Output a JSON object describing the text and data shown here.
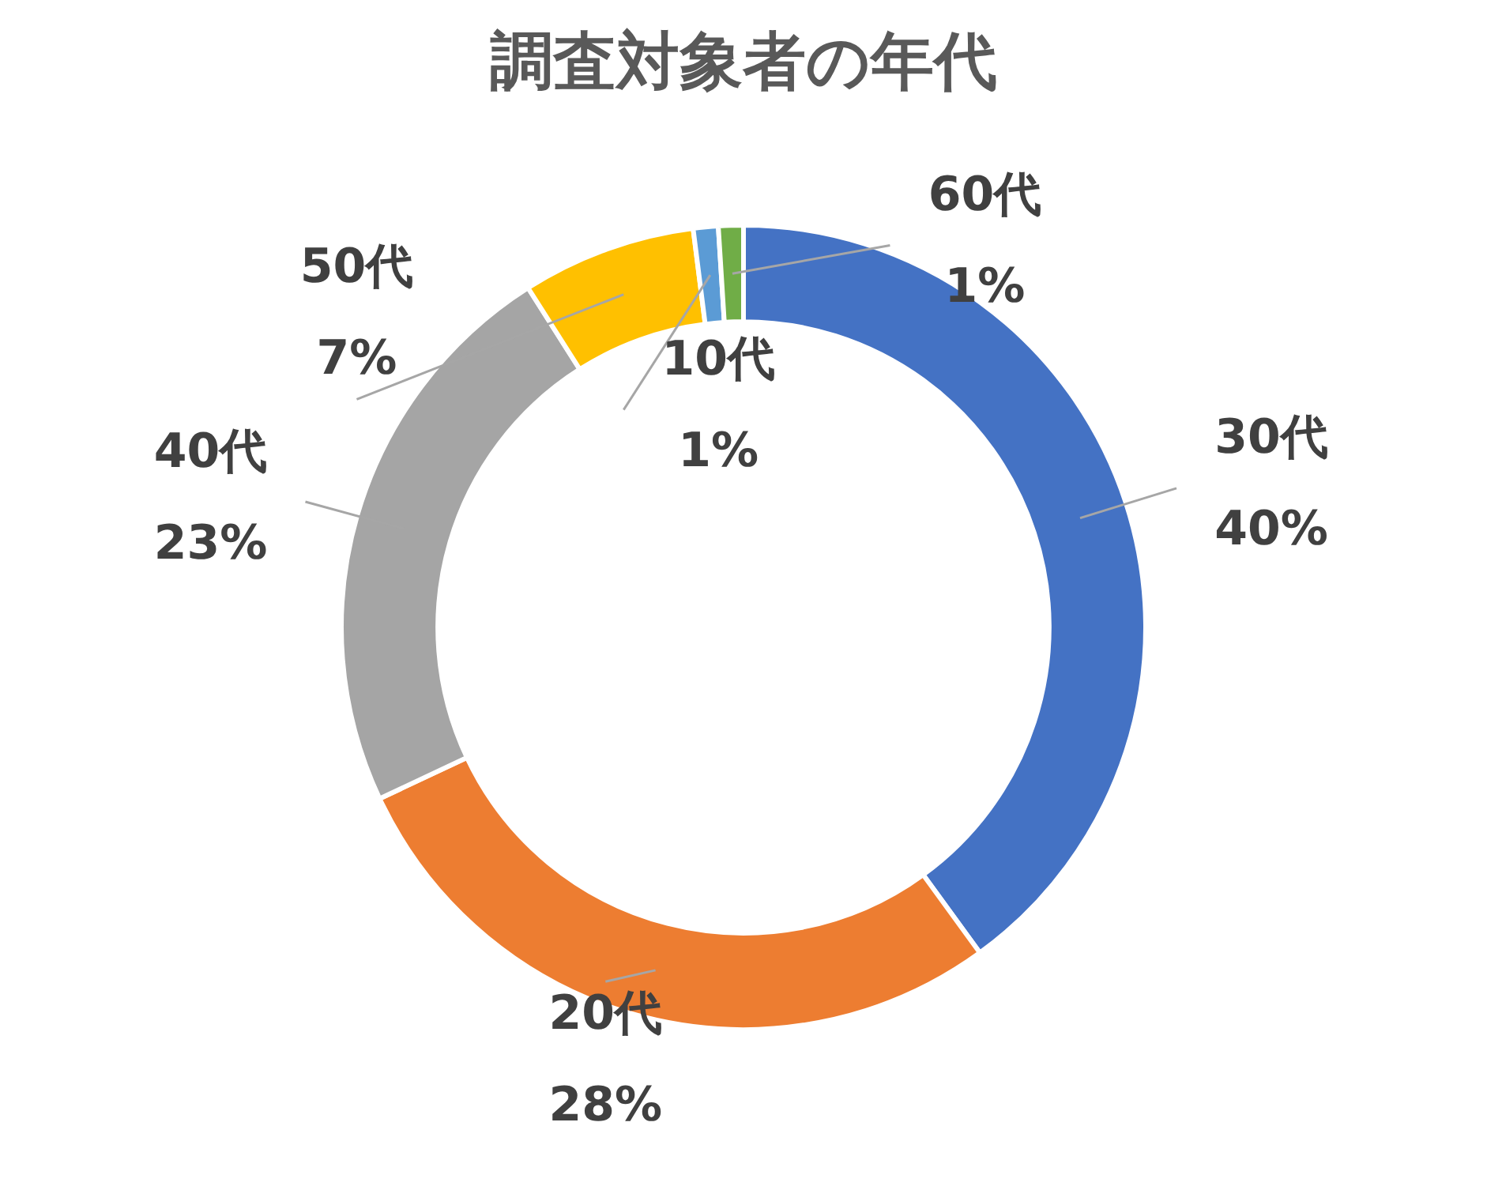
{
  "chart_data": {
    "type": "donut",
    "title": "調査対象者の年代",
    "categories": [
      "30代",
      "20代",
      "40代",
      "50代",
      "10代",
      "60代"
    ],
    "values": [
      40,
      28,
      23,
      7,
      1,
      1
    ],
    "value_labels": [
      "40%",
      "28%",
      "23%",
      "7%",
      "1%",
      "1%"
    ],
    "colors": [
      "#4472c4",
      "#ed7d31",
      "#a5a5a5",
      "#ffc000",
      "#5b9bd5",
      "#70ad47"
    ],
    "legend": false
  }
}
